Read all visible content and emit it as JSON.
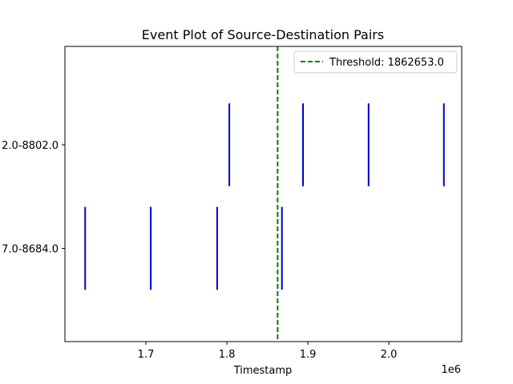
{
  "chart_data": {
    "type": "event",
    "title": "Event Plot of Source-Destination Pairs",
    "xlabel": "Timestamp",
    "ylabel": "",
    "x_offset_label": "1e6",
    "x_unit_scale": 1000000,
    "xlim": [
      1600000,
      2090000
    ],
    "ylim": [
      -0.9,
      1.95
    ],
    "xticks": [
      1700000,
      1800000,
      1900000,
      2000000
    ],
    "xtick_labels": [
      "1.7",
      "1.8",
      "1.9",
      "2.0"
    ],
    "yticks": [
      0,
      1
    ],
    "ytick_labels": [
      "7.0-8684.0",
      "2.0-8802.0"
    ],
    "series": [
      {
        "events": [
          1625000,
          1706000,
          1788000,
          1868000
        ],
        "color": "#0000cc"
      },
      {
        "events": [
          1803000,
          1894000,
          1975000,
          2068000
        ],
        "color": "#0000cc"
      }
    ],
    "line_length": 0.8,
    "threshold": {
      "x": 1862653.0,
      "label": "Threshold: 1862653.0",
      "color": "#008000",
      "style": "dashed"
    },
    "legend_position": "top-right",
    "grid": false
  }
}
